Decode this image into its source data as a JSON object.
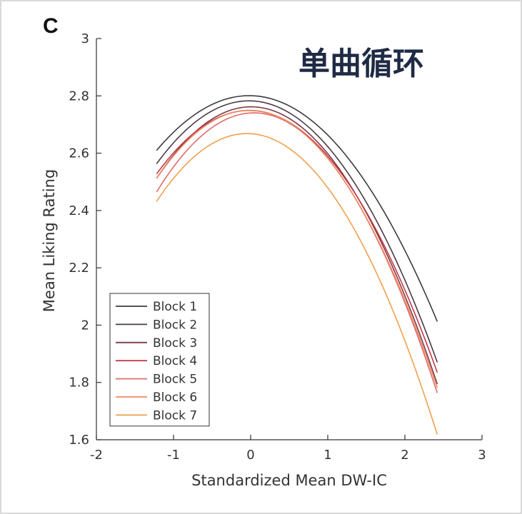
{
  "panel_letter": "C",
  "overlay_text": "单曲循环",
  "chart_data": {
    "type": "line",
    "title": "",
    "xlabel": "Standardized Mean DW-IC",
    "ylabel": "Mean Liking Rating",
    "xlim": [
      -2,
      3
    ],
    "ylim": [
      1.6,
      3.0
    ],
    "xticks": [
      -2,
      -1,
      0,
      1,
      2,
      3
    ],
    "xtick_labels": [
      "-2",
      "-1",
      "0",
      "1",
      "2",
      "3"
    ],
    "yticks": [
      1.6,
      1.8,
      2.0,
      2.2,
      2.4,
      2.6,
      2.8,
      3.0
    ],
    "ytick_labels": [
      "1.6",
      "1.8",
      "2",
      "2.2",
      "2.4",
      "2.6",
      "2.8",
      "3"
    ],
    "x_range": [
      -1.22,
      2.42
    ],
    "grid": false,
    "legend_position": "bottom-left",
    "series": [
      {
        "name": "Block 1",
        "color": "#3d3a40",
        "x": [
          -1.22,
          -0.6,
          0.0,
          0.6,
          1.2,
          1.8,
          2.42
        ],
        "y": [
          2.61,
          2.75,
          2.805,
          2.76,
          2.6,
          2.35,
          2.02
        ]
      },
      {
        "name": "Block 2",
        "color": "#4a3c44",
        "x": [
          -1.22,
          -0.6,
          0.0,
          0.6,
          1.2,
          1.8,
          2.42
        ],
        "y": [
          2.56,
          2.73,
          2.79,
          2.73,
          2.55,
          2.26,
          1.88
        ]
      },
      {
        "name": "Block 3",
        "color": "#7a3b48",
        "x": [
          -1.22,
          -0.6,
          0.0,
          0.6,
          1.2,
          1.8,
          2.42
        ],
        "y": [
          2.51,
          2.7,
          2.765,
          2.71,
          2.52,
          2.22,
          1.8
        ]
      },
      {
        "name": "Block 4",
        "color": "#c23b4a",
        "x": [
          -1.22,
          -0.6,
          0.0,
          0.6,
          1.2,
          1.8,
          2.42
        ],
        "y": [
          2.52,
          2.7,
          2.76,
          2.7,
          2.51,
          2.22,
          1.85
        ]
      },
      {
        "name": "Block 5",
        "color": "#e06b6b",
        "x": [
          -1.22,
          -0.6,
          0.0,
          0.6,
          1.2,
          1.8,
          2.42
        ],
        "y": [
          2.46,
          2.67,
          2.75,
          2.69,
          2.5,
          2.2,
          1.77
        ]
      },
      {
        "name": "Block 6",
        "color": "#ee8a60",
        "x": [
          -1.22,
          -0.6,
          0.0,
          0.6,
          1.2,
          1.8,
          2.42
        ],
        "y": [
          2.51,
          2.69,
          2.755,
          2.7,
          2.5,
          2.2,
          1.79
        ]
      },
      {
        "name": "Block 7",
        "color": "#f0a04e",
        "x": [
          -1.22,
          -0.6,
          0.0,
          0.6,
          1.2,
          1.8,
          2.42
        ],
        "y": [
          2.44,
          2.6,
          2.67,
          2.6,
          2.41,
          2.07,
          1.62
        ]
      }
    ]
  }
}
